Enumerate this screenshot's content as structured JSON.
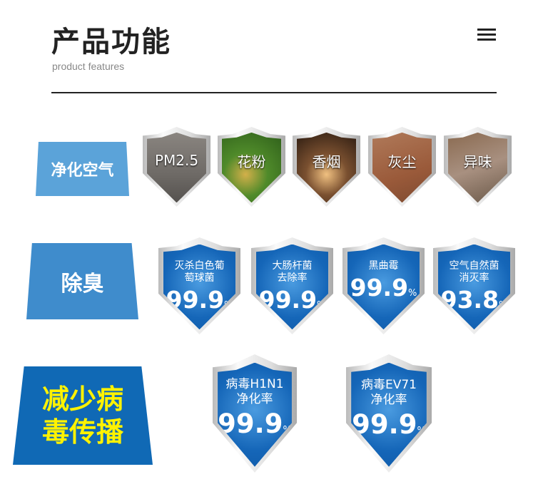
{
  "header": {
    "title": "产品功能",
    "subtitle": "product features",
    "menu_icon": "hamburger-menu-icon"
  },
  "rows": [
    {
      "label": "净化空气",
      "label_color": "#5ba3d9",
      "items": [
        {
          "text": "PM2.5",
          "bg": "linear-gradient(180deg,#8a8580,#6e6a66 60%,#55524f)"
        },
        {
          "text": "花粉",
          "bg": "radial-gradient(circle at 40% 60%,#d3b04a,#4f8a2a 40%,#2e5e1a)"
        },
        {
          "text": "香烟",
          "bg": "radial-gradient(circle at 50% 60%,#f0c080,#7a5030 40%,#2a1a10)"
        },
        {
          "text": "灰尘",
          "bg": "linear-gradient(160deg,#b07a5a,#9a5a3a 60%,#7e4a30)"
        },
        {
          "text": "异味",
          "bg": "linear-gradient(160deg,#8a6a50,#a89080 50%,#6a5848)"
        }
      ]
    },
    {
      "label": "除臭",
      "label_color": "#3f8ccc",
      "items": [
        {
          "text": "灭杀白色葡\n萄球菌",
          "value": "99.9",
          "unit": "%"
        },
        {
          "text": "大肠杆菌\n去除率",
          "value": "99.9",
          "unit": "%"
        },
        {
          "text": "黑曲霉",
          "value": "99.9",
          "unit": "%"
        },
        {
          "text": "空气自然菌\n消灭率",
          "value": "93.8",
          "unit": "%"
        }
      ]
    },
    {
      "label": "减少病\n毒传播",
      "label_color": "#1069b5",
      "label_text_color": "#fff200",
      "items": [
        {
          "text": "病毒H1N1\n净化率",
          "value": "99.9",
          "unit": "%"
        },
        {
          "text": "病毒EV71\n净化率",
          "value": "99.9",
          "unit": "%"
        }
      ]
    }
  ]
}
